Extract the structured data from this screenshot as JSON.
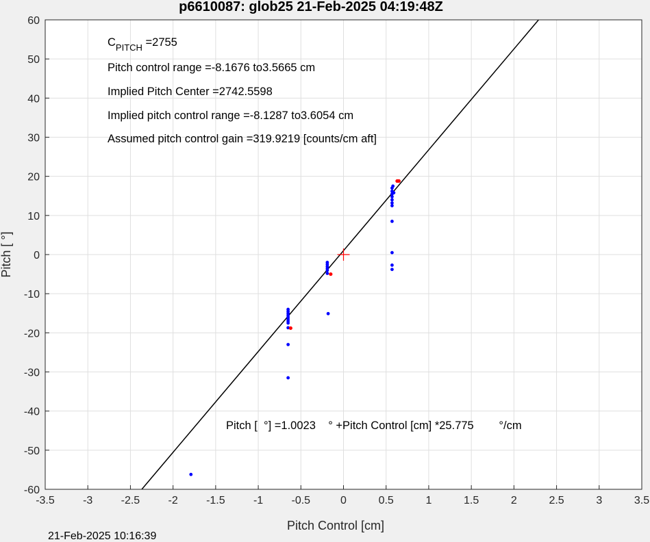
{
  "chart_data": {
    "type": "scatter",
    "title": "p6610087: glob25 21-Feb-2025 04:19:48Z",
    "xlabel": "Pitch Control [cm]",
    "ylabel": "Pitch [  °]",
    "xlim": [
      -3.5,
      3.5
    ],
    "ylim": [
      -60,
      60
    ],
    "xticks": [
      "-3.5",
      "-3",
      "-2.5",
      "-2",
      "-1.5",
      "-1",
      "-0.5",
      "0",
      "0.5",
      "1",
      "1.5",
      "2",
      "2.5",
      "3",
      "3.5"
    ],
    "yticks": [
      "-60",
      "-50",
      "-40",
      "-30",
      "-20",
      "-10",
      "0",
      "10",
      "20",
      "30",
      "40",
      "50",
      "60"
    ],
    "grid": true,
    "fit_line": {
      "slope": 25.775,
      "intercept": 1.0023
    },
    "center_marker": {
      "x": 0,
      "y": 0
    },
    "series_blue": [
      {
        "x": -1.79,
        "y": -56.2
      },
      {
        "x": -0.65,
        "y": -31.5
      },
      {
        "x": -0.65,
        "y": -23.0
      },
      {
        "x": -0.65,
        "y": -18.7
      },
      {
        "x": -0.65,
        "y": -17.5
      },
      {
        "x": -0.65,
        "y": -17.0
      },
      {
        "x": -0.65,
        "y": -16.5
      },
      {
        "x": -0.65,
        "y": -16.0
      },
      {
        "x": -0.65,
        "y": -15.5
      },
      {
        "x": -0.65,
        "y": -15.0
      },
      {
        "x": -0.65,
        "y": -14.5
      },
      {
        "x": -0.65,
        "y": -14.0
      },
      {
        "x": -0.18,
        "y": -15.1
      },
      {
        "x": -0.19,
        "y": -4.8
      },
      {
        "x": -0.19,
        "y": -4.0
      },
      {
        "x": -0.19,
        "y": -3.5
      },
      {
        "x": -0.19,
        "y": -3.0
      },
      {
        "x": -0.19,
        "y": -2.5
      },
      {
        "x": -0.19,
        "y": -2.0
      },
      {
        "x": 0.57,
        "y": -3.8
      },
      {
        "x": 0.57,
        "y": -2.7
      },
      {
        "x": 0.57,
        "y": 0.5
      },
      {
        "x": 0.57,
        "y": 8.5
      },
      {
        "x": 0.57,
        "y": 12.5
      },
      {
        "x": 0.57,
        "y": 13.2
      },
      {
        "x": 0.57,
        "y": 14.0
      },
      {
        "x": 0.57,
        "y": 14.8
      },
      {
        "x": 0.57,
        "y": 15.5
      },
      {
        "x": 0.57,
        "y": 16.2
      },
      {
        "x": 0.57,
        "y": 17.0
      },
      {
        "x": 0.58,
        "y": 17.5
      },
      {
        "x": 0.59,
        "y": 15.8
      }
    ],
    "series_red": [
      {
        "x": -0.62,
        "y": -18.8
      },
      {
        "x": -0.15,
        "y": -5.0
      },
      {
        "x": 0.63,
        "y": 18.8
      },
      {
        "x": 0.65,
        "y": 18.8
      }
    ]
  },
  "annotations": {
    "c_pitch_main": "C",
    "c_pitch_sub": "PITCH",
    "c_pitch_value": " =2755",
    "line2": "Pitch control range =-8.1676 to3.5665 cm",
    "line3": "Implied Pitch Center =2742.5598",
    "line4": "Implied pitch control range =-8.1287 to3.6054 cm",
    "line5": "Assumed pitch control gain =319.9219 [counts/cm aft]",
    "equation": "Pitch [  °] =1.0023    ° +Pitch Control [cm] *25.775        °/cm"
  },
  "footer": {
    "timestamp": "21-Feb-2025 10:16:39"
  },
  "colors": {
    "blue": "#0000ff",
    "red": "#ff0000",
    "grid": "#dfdfdf",
    "line": "#000000"
  }
}
